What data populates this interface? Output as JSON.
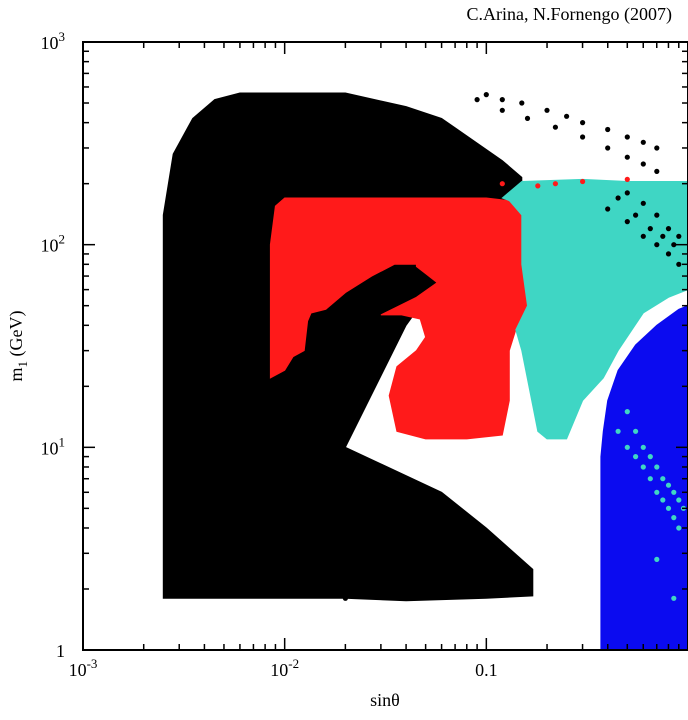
{
  "chart_data": {
    "type": "scatter",
    "annotation": "C.Arina, N.Fornengo (2007)",
    "xlabel": "sinθ",
    "ylabel": "m1 (GeV)",
    "ylabel_main": "m",
    "ylabel_sub": "1",
    "ylabel_unit": " (GeV)",
    "xscale": "log",
    "yscale": "log",
    "xlim": [
      0.001,
      1
    ],
    "ylim": [
      1,
      1000
    ],
    "grid": false,
    "x_ticks": [
      {
        "value": 0.001,
        "base": "10",
        "exp": "-3"
      },
      {
        "value": 0.01,
        "base": "10",
        "exp": "-2"
      },
      {
        "value": 0.1,
        "base": "0.1",
        "exp": ""
      }
    ],
    "y_ticks": [
      {
        "value": 1,
        "base": "1",
        "exp": ""
      },
      {
        "value": 10,
        "base": "10",
        "exp": "1"
      },
      {
        "value": 100,
        "base": "10",
        "exp": "2"
      },
      {
        "value": 1000,
        "base": "10",
        "exp": "3"
      }
    ],
    "colors": {
      "black": "#000000",
      "red": "#ff1a1a",
      "cyan": "#3fd6c4",
      "blue": "#0b0bf0"
    },
    "regions": [
      {
        "color": "black",
        "polygon": [
          [
            0.0025,
            1.8
          ],
          [
            0.0025,
            140
          ],
          [
            0.0028,
            280
          ],
          [
            0.0035,
            420
          ],
          [
            0.0045,
            520
          ],
          [
            0.006,
            560
          ],
          [
            0.01,
            560
          ],
          [
            0.02,
            560
          ],
          [
            0.04,
            480
          ],
          [
            0.06,
            420
          ],
          [
            0.12,
            260
          ],
          [
            0.15,
            215
          ],
          [
            0.15,
            170
          ],
          [
            0.12,
            130
          ],
          [
            0.1,
            110
          ],
          [
            0.09,
            90
          ],
          [
            0.06,
            70
          ],
          [
            0.04,
            40
          ],
          [
            0.02,
            10
          ],
          [
            0.06,
            6
          ],
          [
            0.1,
            4
          ],
          [
            0.17,
            2.5
          ],
          [
            0.17,
            1.85
          ],
          [
            0.1,
            1.8
          ],
          [
            0.04,
            1.75
          ],
          [
            0.02,
            1.8
          ],
          [
            0.01,
            1.8
          ]
        ]
      },
      {
        "color": "red",
        "polygon": [
          [
            0.0085,
            22
          ],
          [
            0.0085,
            100
          ],
          [
            0.009,
            155
          ],
          [
            0.01,
            170
          ],
          [
            0.02,
            170
          ],
          [
            0.05,
            170
          ],
          [
            0.1,
            170
          ],
          [
            0.13,
            165
          ],
          [
            0.15,
            140
          ],
          [
            0.15,
            80
          ],
          [
            0.16,
            50
          ],
          [
            0.14,
            38
          ],
          [
            0.13,
            30
          ],
          [
            0.13,
            17
          ],
          [
            0.12,
            11.5
          ],
          [
            0.08,
            11
          ],
          [
            0.05,
            11
          ],
          [
            0.036,
            12
          ],
          [
            0.033,
            18
          ],
          [
            0.036,
            25
          ],
          [
            0.045,
            30
          ],
          [
            0.05,
            35
          ],
          [
            0.047,
            43
          ],
          [
            0.038,
            45
          ],
          [
            0.03,
            45
          ],
          [
            0.045,
            55
          ],
          [
            0.057,
            65
          ],
          [
            0.05,
            72
          ],
          [
            0.045,
            78
          ],
          [
            0.045,
            80
          ],
          [
            0.035,
            80
          ],
          [
            0.027,
            70
          ],
          [
            0.02,
            58
          ],
          [
            0.016,
            48
          ],
          [
            0.0135,
            46
          ],
          [
            0.013,
            42
          ],
          [
            0.0125,
            30
          ],
          [
            0.011,
            28
          ],
          [
            0.01,
            24
          ]
        ]
      },
      {
        "color": "cyan",
        "polygon": [
          [
            0.12,
            170
          ],
          [
            0.15,
            205
          ],
          [
            0.3,
            210
          ],
          [
            0.5,
            205
          ],
          [
            1,
            205
          ],
          [
            1,
            60
          ],
          [
            0.8,
            55
          ],
          [
            0.6,
            46
          ],
          [
            0.45,
            30
          ],
          [
            0.38,
            22
          ],
          [
            0.3,
            17
          ],
          [
            0.25,
            11
          ],
          [
            0.2,
            11
          ],
          [
            0.18,
            12
          ],
          [
            0.17,
            16
          ],
          [
            0.15,
            30
          ],
          [
            0.14,
            38
          ],
          [
            0.16,
            50
          ],
          [
            0.15,
            80
          ],
          [
            0.15,
            140
          ],
          [
            0.13,
            165
          ]
        ]
      },
      {
        "color": "blue",
        "polygon": [
          [
            0.37,
            1
          ],
          [
            1,
            1
          ],
          [
            1,
            50
          ],
          [
            0.9,
            48
          ],
          [
            0.7,
            40
          ],
          [
            0.55,
            32
          ],
          [
            0.45,
            24
          ],
          [
            0.4,
            17
          ],
          [
            0.38,
            12
          ],
          [
            0.37,
            9
          ]
        ]
      }
    ],
    "point_series": [
      {
        "color": "black",
        "points": [
          [
            0.1,
            550
          ],
          [
            0.12,
            520
          ],
          [
            0.15,
            500
          ],
          [
            0.2,
            460
          ],
          [
            0.25,
            430
          ],
          [
            0.3,
            400
          ],
          [
            0.4,
            370
          ],
          [
            0.5,
            340
          ],
          [
            0.6,
            320
          ],
          [
            0.7,
            300
          ],
          [
            0.09,
            520
          ],
          [
            0.12,
            460
          ],
          [
            0.16,
            420
          ],
          [
            0.22,
            380
          ],
          [
            0.3,
            340
          ],
          [
            0.4,
            300
          ],
          [
            0.5,
            270
          ],
          [
            0.6,
            250
          ],
          [
            0.7,
            230
          ],
          [
            0.4,
            150
          ],
          [
            0.5,
            130
          ],
          [
            0.6,
            110
          ],
          [
            0.7,
            100
          ],
          [
            0.8,
            90
          ],
          [
            0.9,
            80
          ],
          [
            0.45,
            170
          ],
          [
            0.55,
            140
          ],
          [
            0.65,
            120
          ],
          [
            0.75,
            110
          ],
          [
            0.85,
            100
          ],
          [
            0.5,
            180
          ],
          [
            0.6,
            160
          ],
          [
            0.7,
            140
          ],
          [
            0.8,
            120
          ],
          [
            0.9,
            110
          ],
          [
            0.06,
            4
          ],
          [
            0.08,
            3.5
          ],
          [
            0.1,
            3
          ],
          [
            0.13,
            2.7
          ],
          [
            0.16,
            2.4
          ],
          [
            0.05,
            3.8
          ],
          [
            0.07,
            3.2
          ],
          [
            0.09,
            2.8
          ],
          [
            0.12,
            2.4
          ],
          [
            0.03,
            2.2
          ],
          [
            0.05,
            2.0
          ],
          [
            0.07,
            1.9
          ],
          [
            0.09,
            1.85
          ],
          [
            0.02,
            1.8
          ],
          [
            0.025,
            1.85
          ],
          [
            0.03,
            1.9
          ],
          [
            0.035,
            1.85
          ],
          [
            0.04,
            1.8
          ]
        ]
      },
      {
        "color": "red",
        "points": [
          [
            0.12,
            200
          ],
          [
            0.18,
            195
          ],
          [
            0.22,
            200
          ],
          [
            0.3,
            205
          ],
          [
            0.5,
            210
          ]
        ]
      },
      {
        "color": "cyan",
        "points": [
          [
            0.45,
            12
          ],
          [
            0.5,
            10
          ],
          [
            0.55,
            9
          ],
          [
            0.6,
            8
          ],
          [
            0.65,
            7
          ],
          [
            0.7,
            6
          ],
          [
            0.75,
            5.5
          ],
          [
            0.8,
            5
          ],
          [
            0.85,
            4.5
          ],
          [
            0.9,
            4
          ],
          [
            0.7,
            2.8
          ],
          [
            0.85,
            1.8
          ],
          [
            0.5,
            15
          ],
          [
            0.55,
            12
          ],
          [
            0.6,
            10
          ],
          [
            0.65,
            9
          ],
          [
            0.7,
            8
          ],
          [
            0.75,
            7
          ],
          [
            0.8,
            6.5
          ],
          [
            0.85,
            6
          ],
          [
            0.9,
            5.5
          ],
          [
            0.95,
            5
          ]
        ]
      }
    ]
  }
}
